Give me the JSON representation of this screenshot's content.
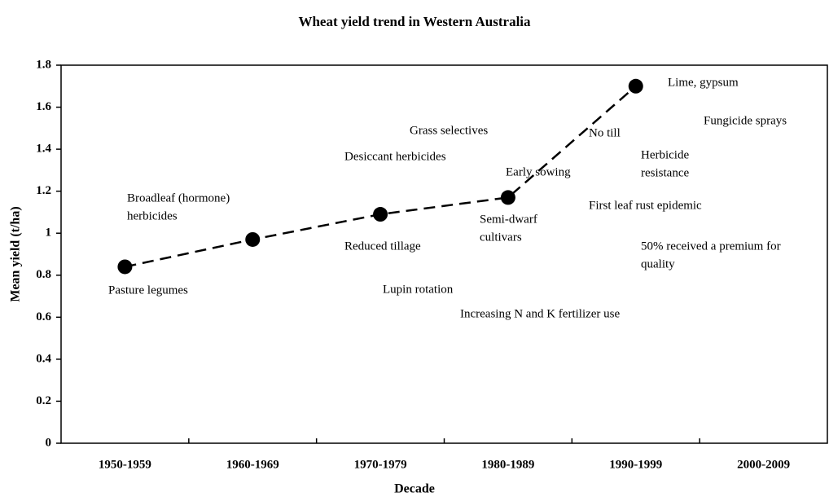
{
  "chart_data": {
    "type": "line",
    "title": "Wheat yield trend in Western Australia",
    "x_label": "Decade",
    "y_label": "Mean yield (t/ha)",
    "categories": [
      "1950-1959",
      "1960-1969",
      "1970-1979",
      "1980-1989",
      "1990-1999",
      "2000-2009"
    ],
    "series": [
      {
        "name": "Mean yield",
        "color": "#000000",
        "values": [
          0.84,
          0.97,
          1.09,
          1.17,
          1.7,
          null
        ]
      }
    ],
    "ylim": [
      0,
      1.8
    ],
    "yticks": [
      0,
      0.2,
      0.4,
      0.6,
      0.8,
      1,
      1.2,
      1.4,
      1.6,
      1.8
    ],
    "line_style": "dashed",
    "marker": "circle",
    "grid": false,
    "annotations": [
      [
        "Pasture legumes"
      ],
      [
        "Broadleaf (hormone)",
        "herbicides"
      ],
      [
        "Reduced tillage"
      ],
      [
        "Lupin rotation"
      ],
      [
        "Desiccant herbicides"
      ],
      [
        "Grass selectives"
      ],
      [
        "Increasing N and K fertilizer use"
      ],
      [
        "Semi-dwarf",
        "cultivars"
      ],
      [
        "Early sowing"
      ],
      [
        "No till"
      ],
      [
        "Lime, gypsum"
      ],
      [
        "Herbicide",
        "resistance"
      ],
      [
        "First leaf rust epidemic"
      ],
      [
        "50% received a premium for",
        "quality"
      ],
      [
        "Fungicide sprays"
      ]
    ]
  }
}
